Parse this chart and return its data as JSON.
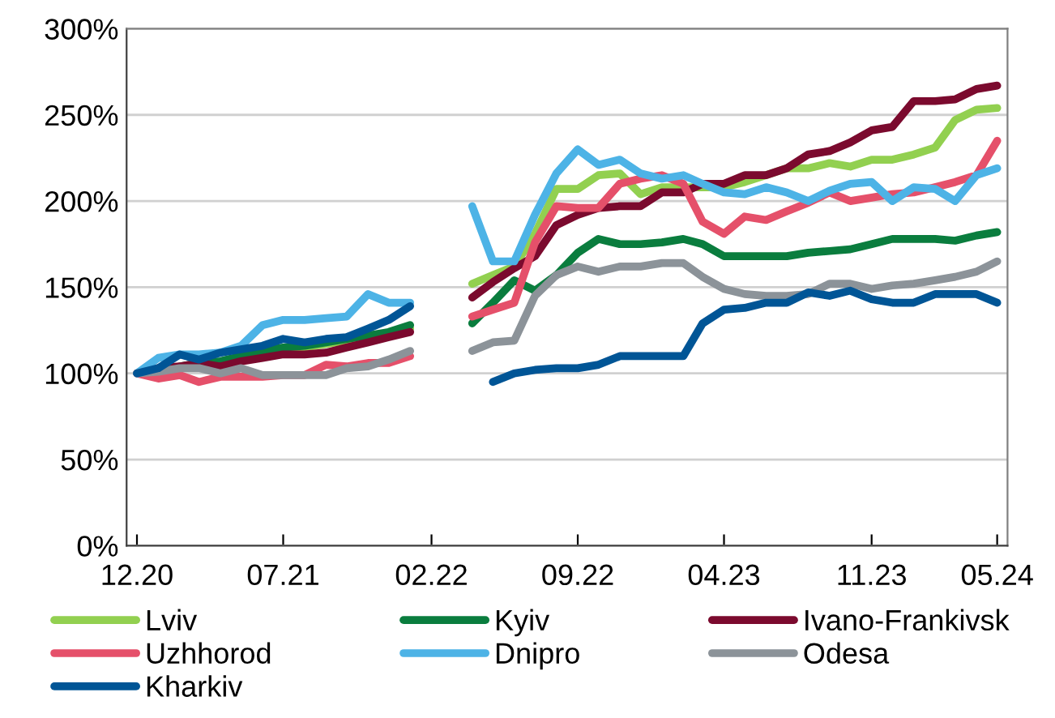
{
  "chart_data": {
    "type": "line",
    "x": [
      "2020-12",
      "2021-01",
      "2021-02",
      "2021-03",
      "2021-04",
      "2021-05",
      "2021-06",
      "2021-07",
      "2021-08",
      "2021-09",
      "2021-10",
      "2021-11",
      "2021-12",
      "2022-01",
      "2022-02",
      "2022-03",
      "2022-04",
      "2022-05",
      "2022-06",
      "2022-07",
      "2022-08",
      "2022-09",
      "2022-10",
      "2022-11",
      "2022-12",
      "2023-01",
      "2023-02",
      "2023-03",
      "2023-04",
      "2023-05",
      "2023-06",
      "2023-07",
      "2023-08",
      "2023-09",
      "2023-10",
      "2023-11",
      "2023-12",
      "2024-01",
      "2024-02",
      "2024-03",
      "2024-04",
      "2024-05"
    ],
    "xlim": [
      "2020-11-16",
      "2024-05-16"
    ],
    "xticks": [
      {
        "value": "2020-12",
        "label": "12.20"
      },
      {
        "value": "2021-07",
        "label": "07.21"
      },
      {
        "value": "2022-02",
        "label": "02.22"
      },
      {
        "value": "2022-09",
        "label": "09.22"
      },
      {
        "value": "2023-04",
        "label": "04.23"
      },
      {
        "value": "2023-11",
        "label": "11.23"
      },
      {
        "value": "2024-05",
        "label": "05.24"
      }
    ],
    "ylim": [
      0,
      300
    ],
    "yticks": [
      {
        "value": 0,
        "label": "0%"
      },
      {
        "value": 50,
        "label": "50%"
      },
      {
        "value": 100,
        "label": "100%"
      },
      {
        "value": 150,
        "label": "150%"
      },
      {
        "value": 200,
        "label": "200%"
      },
      {
        "value": 250,
        "label": "250%"
      },
      {
        "value": 300,
        "label": "300%"
      }
    ],
    "grid": "y",
    "legend": "bottom",
    "marker": "none",
    "line_style": "solid",
    "series": [
      {
        "name": "Lviv",
        "color": "#92d050",
        "values": [
          null,
          null,
          null,
          null,
          null,
          null,
          null,
          114,
          115,
          117,
          119,
          121,
          123,
          126,
          null,
          null,
          152,
          157,
          162,
          181,
          207,
          207,
          215,
          216,
          204,
          208,
          208,
          208,
          208,
          211,
          215,
          219,
          219,
          222,
          220,
          224,
          224,
          227,
          231,
          247,
          253,
          254
        ]
      },
      {
        "name": "Kyiv",
        "color": "#0a7d3e",
        "values": [
          null,
          null,
          104,
          106,
          107,
          110,
          113,
          115,
          116,
          118,
          120,
          122,
          124,
          128,
          null,
          null,
          129,
          141,
          154,
          148,
          157,
          170,
          178,
          175,
          175,
          176,
          178,
          175,
          168,
          168,
          168,
          168,
          170,
          171,
          172,
          175,
          178,
          178,
          178,
          177,
          180,
          182
        ]
      },
      {
        "name": "Ivano-Frankivsk",
        "color": "#7b0a2e",
        "values": [
          100,
          103,
          104,
          106,
          104,
          107,
          109,
          111,
          111,
          112,
          115,
          118,
          121,
          124,
          null,
          null,
          144,
          153,
          161,
          168,
          186,
          192,
          196,
          197,
          197,
          205,
          205,
          210,
          210,
          215,
          215,
          219,
          227,
          229,
          234,
          241,
          243,
          258,
          258,
          259,
          265,
          267
        ]
      },
      {
        "name": "Uzhhorod",
        "color": "#e5506a",
        "values": [
          100,
          97,
          99,
          95,
          98,
          98,
          98,
          99,
          99,
          105,
          104,
          106,
          106,
          110,
          null,
          null,
          133,
          137,
          141,
          176,
          197,
          196,
          196,
          210,
          213,
          215,
          210,
          188,
          181,
          191,
          189,
          194,
          199,
          205,
          200,
          202,
          204,
          205,
          208,
          211,
          215,
          235
        ]
      },
      {
        "name": "Dnipro",
        "color": "#4db3e6",
        "values": [
          100,
          109,
          111,
          111,
          112,
          116,
          128,
          131,
          131,
          132,
          133,
          146,
          141,
          141,
          null,
          null,
          197,
          165,
          165,
          192,
          216,
          230,
          221,
          224,
          216,
          213,
          215,
          210,
          205,
          204,
          208,
          205,
          200,
          206,
          210,
          211,
          200,
          208,
          207,
          200,
          215,
          219
        ]
      },
      {
        "name": "Odesa",
        "color": "#8c9399",
        "values": [
          100,
          101,
          103,
          103,
          100,
          103,
          99,
          99,
          99,
          99,
          103,
          104,
          108,
          113,
          null,
          null,
          113,
          118,
          119,
          145,
          157,
          162,
          159,
          162,
          162,
          164,
          164,
          156,
          149,
          146,
          145,
          145,
          146,
          152,
          152,
          149,
          151,
          152,
          154,
          156,
          159,
          165
        ]
      },
      {
        "name": "Kharkiv",
        "color": "#005596",
        "values": [
          100,
          103,
          111,
          108,
          112,
          114,
          116,
          120,
          118,
          120,
          121,
          126,
          131,
          139,
          null,
          null,
          null,
          95,
          100,
          102,
          103,
          103,
          105,
          110,
          110,
          110,
          110,
          129,
          137,
          138,
          141,
          141,
          147,
          145,
          148,
          143,
          141,
          141,
          146,
          146,
          146,
          141
        ]
      }
    ]
  }
}
